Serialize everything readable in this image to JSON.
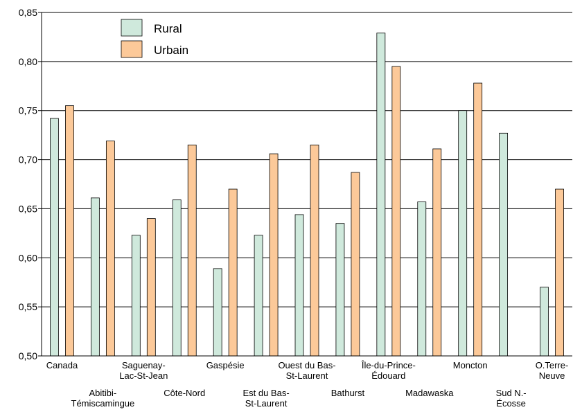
{
  "chart_data": {
    "type": "bar",
    "categories": [
      [
        "Canada"
      ],
      [
        "Abitibi-",
        "Témiscamingue"
      ],
      [
        "Saguenay-",
        "Lac-St-Jean"
      ],
      [
        "Côte-Nord"
      ],
      [
        "Gaspésie"
      ],
      [
        "Est du Bas-",
        "St-Laurent"
      ],
      [
        "Ouest du Bas-",
        "St-Laurent"
      ],
      [
        "Bathurst"
      ],
      [
        "Île-du-Prince-",
        "Édouard"
      ],
      [
        "Madawaska"
      ],
      [
        "Moncton"
      ],
      [
        "Sud N.-",
        "Écosse"
      ],
      [
        "O.Terre-",
        "Neuve"
      ]
    ],
    "series": [
      {
        "name": "Rural",
        "color": "#cfe9dc",
        "values": [
          0.742,
          0.661,
          0.623,
          0.659,
          0.589,
          0.623,
          0.644,
          0.635,
          0.829,
          0.657,
          0.75,
          0.727,
          0.57
        ]
      },
      {
        "name": "Urbain",
        "color": "#fcc999",
        "values": [
          0.755,
          0.719,
          0.64,
          0.715,
          0.67,
          0.706,
          0.715,
          0.687,
          0.795,
          0.711,
          0.778,
          null,
          0.67
        ]
      }
    ],
    "title": "",
    "xlabel": "",
    "ylabel": "",
    "ylim": [
      0.5,
      0.85
    ],
    "yticks": [
      "0,50",
      "0,55",
      "0,60",
      "0,65",
      "0,70",
      "0,75",
      "0,80",
      "0,85"
    ],
    "grid": true,
    "legend": "top-left"
  }
}
